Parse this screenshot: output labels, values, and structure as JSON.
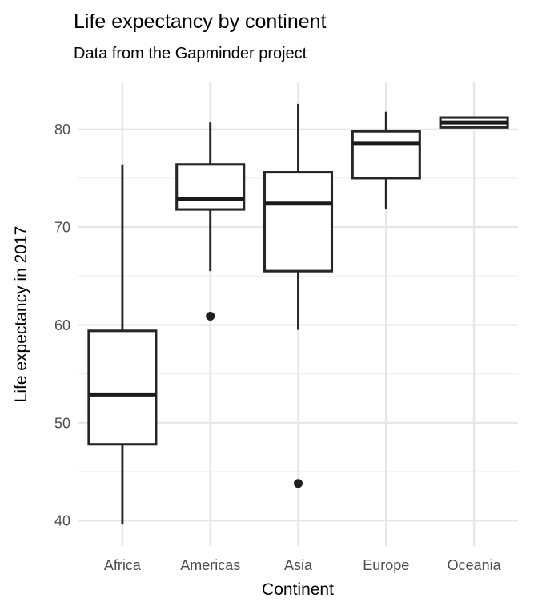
{
  "header": {
    "title": "Life expectancy by continent",
    "subtitle": "Data from the Gapminder project"
  },
  "chart_data": {
    "type": "boxplot",
    "title": "Life expectancy by continent",
    "subtitle": "Data from the Gapminder project",
    "xlabel": "Continent",
    "ylabel": "Life expectancy in 2017",
    "categories": [
      "Africa",
      "Americas",
      "Asia",
      "Europe",
      "Oceania"
    ],
    "y_ticks": [
      40,
      50,
      60,
      70,
      80
    ],
    "y_minor_ticks": [
      45,
      55,
      65,
      75
    ],
    "ylim": [
      37.4,
      84.8
    ],
    "grid": "major and minor horizontal gridlines plus vertical category gridlines, light gray on white",
    "legend": "none",
    "series": [
      {
        "category": "Africa",
        "whisker_min": 39.6,
        "q1": 47.8,
        "median": 52.9,
        "q3": 59.4,
        "whisker_max": 76.4,
        "outliers": []
      },
      {
        "category": "Americas",
        "whisker_min": 65.5,
        "q1": 71.8,
        "median": 72.9,
        "q3": 76.4,
        "whisker_max": 80.7,
        "outliers": [
          60.9
        ]
      },
      {
        "category": "Asia",
        "whisker_min": 59.5,
        "q1": 65.5,
        "median": 72.4,
        "q3": 75.6,
        "whisker_max": 82.6,
        "outliers": [
          43.8
        ]
      },
      {
        "category": "Europe",
        "whisker_min": 71.8,
        "q1": 75.0,
        "median": 78.6,
        "q3": 79.8,
        "whisker_max": 81.8,
        "outliers": []
      },
      {
        "category": "Oceania",
        "whisker_min": 80.2,
        "q1": 80.2,
        "median": 80.7,
        "q3": 81.2,
        "whisker_max": 81.2,
        "outliers": []
      }
    ],
    "colors": {
      "box_fill": "#ffffff",
      "box_stroke": "#262626",
      "median": "#1a1a1a",
      "outlier": "#1f1f1f",
      "grid_major": "#e6e6e6",
      "grid_minor": "#f1f1f1",
      "tick_label": "#4d4d4d",
      "axis_title": "#000000",
      "background": "#ffffff"
    }
  }
}
